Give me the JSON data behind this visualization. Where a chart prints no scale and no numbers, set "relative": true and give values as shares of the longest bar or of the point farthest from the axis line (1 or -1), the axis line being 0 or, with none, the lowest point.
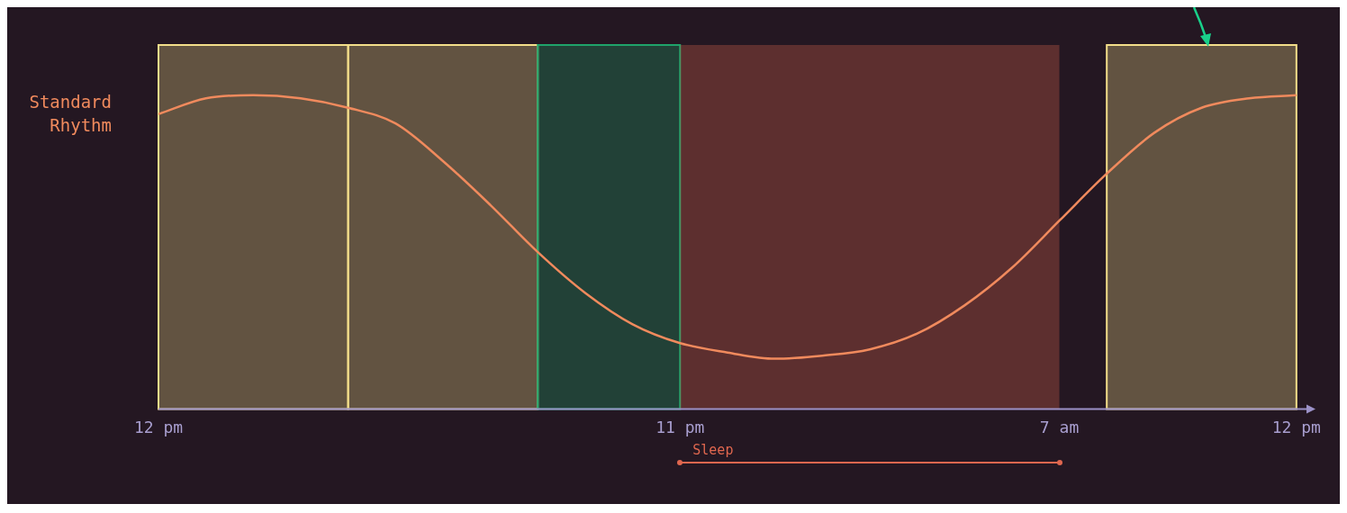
{
  "chart_data": {
    "type": "line",
    "relative": true,
    "x": [
      "--01-01T12:00",
      "--01-01T13:00",
      "--01-01T14:00",
      "--01-01T15:00",
      "--01-01T16:00",
      "--01-01T17:00",
      "--01-01T18:00",
      "--01-01T19:00",
      "--01-01T20:00",
      "--01-01T21:00",
      "--01-01T22:00",
      "--01-01T23:00",
      "--01-02T00:00",
      "--01-02T01:00",
      "--01-02T02:00",
      "--01-02T03:00",
      "--01-02T04:00",
      "--01-02T05:00",
      "--01-02T06:00",
      "--01-02T07:00",
      "--01-02T08:00",
      "--01-02T09:00",
      "--01-02T10:00",
      "--01-02T11:00",
      "--01-02T12:00"
    ],
    "series": [
      {
        "name": "Standard Rhythm",
        "color": "#f08a5d",
        "values": [
          0.94,
          0.99,
          1.0,
          0.99,
          0.96,
          0.91,
          0.79,
          0.65,
          0.5,
          0.37,
          0.27,
          0.21,
          0.18,
          0.16,
          0.17,
          0.19,
          0.24,
          0.33,
          0.45,
          0.6,
          0.75,
          0.88,
          0.96,
          0.99,
          1.0
        ]
      }
    ],
    "xlim": [
      "--01-01T12:00",
      "--01-02T12:15"
    ],
    "xticks": [
      {
        "value": "--01-01T12:00",
        "label": "12 pm"
      },
      {
        "value": "--01-01T23:00",
        "label": "11 pm"
      },
      {
        "value": "--01-02T07:00",
        "label": "7 am"
      },
      {
        "value": "--01-02T12:00",
        "label": "12 pm"
      }
    ],
    "bands": [
      {
        "axis": "x",
        "from": "--01-01T12:00",
        "to": "--01-01T16:00",
        "color": "#f3de8a"
      },
      {
        "axis": "x",
        "from": "--01-01T16:00",
        "to": "--01-01T20:00",
        "color": "#f3de8a"
      },
      {
        "axis": "x",
        "from": "--01-01T20:00",
        "to": "--01-01T23:00",
        "color": "#1fa36a"
      },
      {
        "axis": "x",
        "from": "--01-01T23:00",
        "to": "--01-02T07:00",
        "label": "Sleep",
        "color": "#e0674f"
      },
      {
        "axis": "x",
        "from": "--01-02T08:00",
        "to": "--01-02T12:00",
        "color": "#f3de8a"
      }
    ],
    "legend": false,
    "marker": "none",
    "line_style": "solid"
  }
}
